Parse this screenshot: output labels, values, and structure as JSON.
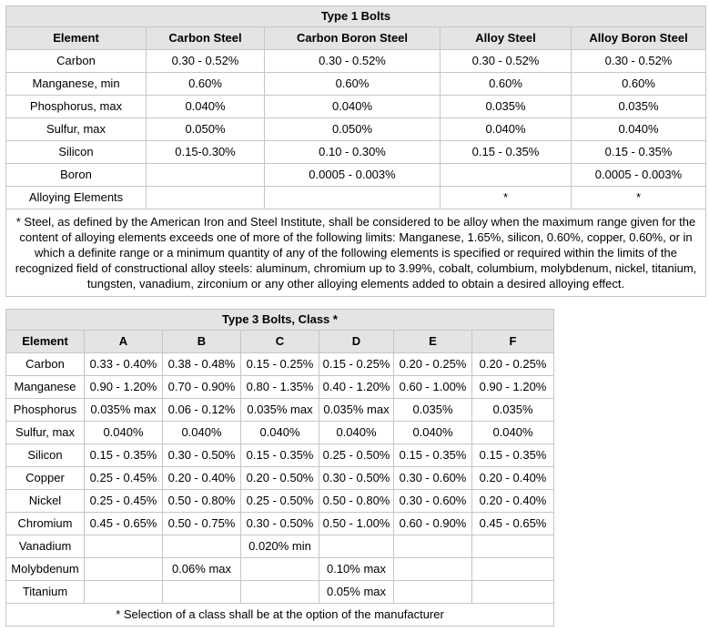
{
  "colors": {
    "header_bg": "#e4e4e4",
    "border": "#c6c6c6",
    "text": "#000000",
    "page_bg": "#ffffff"
  },
  "table1": {
    "title": "Type 1 Bolts",
    "columns": [
      "Element",
      "Carbon Steel",
      "Carbon Boron Steel",
      "Alloy Steel",
      "Alloy Boron Steel"
    ],
    "rows": [
      {
        "element": "Carbon",
        "values": [
          "0.30 - 0.52%",
          "0.30 - 0.52%",
          "0.30 - 0.52%",
          "0.30 - 0.52%"
        ]
      },
      {
        "element": "Manganese, min",
        "values": [
          "0.60%",
          "0.60%",
          "0.60%",
          "0.60%"
        ]
      },
      {
        "element": "Phosphorus, max",
        "values": [
          "0.040%",
          "0.040%",
          "0.035%",
          "0.035%"
        ]
      },
      {
        "element": "Sulfur, max",
        "values": [
          "0.050%",
          "0.050%",
          "0.040%",
          "0.040%"
        ]
      },
      {
        "element": "Silicon",
        "values": [
          "0.15-0.30%",
          "0.10 - 0.30%",
          "0.15 - 0.35%",
          "0.15 - 0.35%"
        ]
      },
      {
        "element": "Boron",
        "values": [
          "",
          "0.0005 - 0.003%",
          "",
          "0.0005 - 0.003%"
        ]
      },
      {
        "element": "Alloying Elements",
        "values": [
          "",
          "",
          "*",
          "*"
        ]
      }
    ],
    "footnote": "* Steel, as defined by the American Iron and Steel Institute, shall be considered to be alloy when the maximum range given for the content of alloying elements exceeds one of more of the following limits: Manganese, 1.65%, silicon, 0.60%, copper, 0.60%, or in which a definite range or a minimum quantity of any of the following elements is specified or required within the limits of the recognized field of constructional alloy steels: aluminum, chromium up to 3.99%, cobalt, columbium, molybdenum, nickel, titanium, tungsten, vanadium, zirconium or any other alloying elements added to obtain a desired alloying effect."
  },
  "table2": {
    "title": "Type 3 Bolts, Class *",
    "columns": [
      "Element",
      "A",
      "B",
      "C",
      "D",
      "E",
      "F"
    ],
    "rows": [
      {
        "element": "Carbon",
        "values": [
          "0.33 - 0.40%",
          "0.38 - 0.48%",
          "0.15 - 0.25%",
          "0.15 - 0.25%",
          "0.20 - 0.25%",
          "0.20 - 0.25%"
        ]
      },
      {
        "element": "Manganese",
        "values": [
          "0.90 - 1.20%",
          "0.70 - 0.90%",
          "0.80 - 1.35%",
          "0.40 - 1.20%",
          "0.60 - 1.00%",
          "0.90 - 1.20%"
        ]
      },
      {
        "element": "Phosphorus",
        "values": [
          "0.035% max",
          "0.06 - 0.12%",
          "0.035% max",
          "0.035% max",
          "0.035%",
          "0.035%"
        ]
      },
      {
        "element": "Sulfur, max",
        "values": [
          "0.040%",
          "0.040%",
          "0.040%",
          "0.040%",
          "0.040%",
          "0.040%"
        ]
      },
      {
        "element": "Silicon",
        "values": [
          "0.15 - 0.35%",
          "0.30 - 0.50%",
          "0.15 - 0.35%",
          "0.25 - 0.50%",
          "0.15 - 0.35%",
          "0.15 - 0.35%"
        ]
      },
      {
        "element": "Copper",
        "values": [
          "0.25 - 0.45%",
          "0.20 - 0.40%",
          "0.20 - 0.50%",
          "0.30 - 0.50%",
          "0.30 - 0.60%",
          "0.20 - 0.40%"
        ]
      },
      {
        "element": "Nickel",
        "values": [
          "0.25 - 0.45%",
          "0.50 - 0.80%",
          "0.25 - 0.50%",
          "0.50 - 0.80%",
          "0.30 - 0.60%",
          "0.20 - 0.40%"
        ]
      },
      {
        "element": "Chromium",
        "values": [
          "0.45 - 0.65%",
          "0.50 - 0.75%",
          "0.30 - 0.50%",
          "0.50 - 1.00%",
          "0.60 - 0.90%",
          "0.45 - 0.65%"
        ]
      },
      {
        "element": "Vanadium",
        "values": [
          "",
          "",
          "0.020% min",
          "",
          "",
          ""
        ]
      },
      {
        "element": "Molybdenum",
        "values": [
          "",
          "0.06% max",
          "",
          "0.10% max",
          "",
          ""
        ]
      },
      {
        "element": "Titanium",
        "values": [
          "",
          "",
          "",
          "0.05% max",
          "",
          ""
        ]
      }
    ],
    "footnote": "* Selection of a class shall be at the option of the manufacturer"
  }
}
